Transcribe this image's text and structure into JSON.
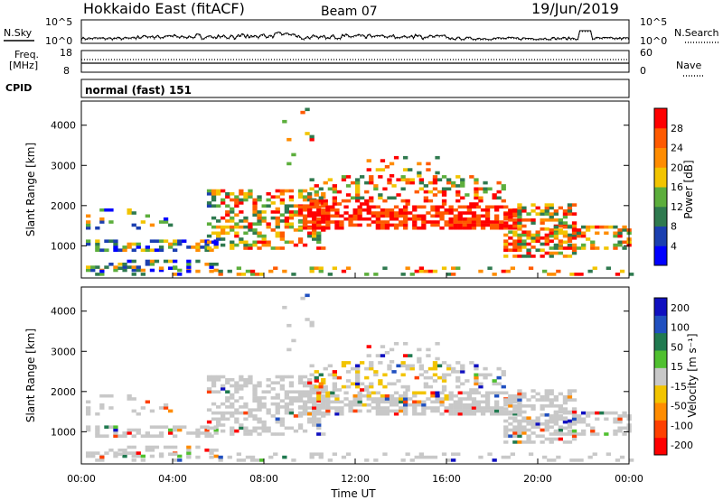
{
  "header": {
    "title": "Hokkaido East (fitACF)",
    "beam": "Beam 07",
    "date": "19/Jun/2019"
  },
  "noise_panel": {
    "left_label": "N.Sky",
    "right_label": "N.Search",
    "left_ticks": [
      "10^5",
      "10^0"
    ],
    "right_ticks": [
      "10^5",
      "10^0"
    ]
  },
  "freq_panel": {
    "left_label_1": "Freq.",
    "left_label_2": "[MHz]",
    "right_label": "Nave",
    "left_ticks": [
      "18",
      "8"
    ],
    "right_ticks": [
      "60",
      "0"
    ]
  },
  "cpid_panel": {
    "label": "CPID",
    "mode": "normal (fast) 151"
  },
  "chart_data": [
    {
      "type": "heatmap",
      "parameter": "power",
      "ylabel": "Slant Range [km]",
      "yticks": [
        1000,
        2000,
        3000,
        4000
      ],
      "ylim": [
        200,
        4600
      ],
      "colorbar_label": "Power [dB]",
      "colorbar_ticks": [
        4,
        8,
        12,
        16,
        20,
        24,
        28
      ],
      "colorbar_range": [
        0,
        32
      ],
      "colors": [
        "#0000ff",
        "#1b3fb0",
        "#2f7a4f",
        "#5cae3c",
        "#f2c400",
        "#ff8c00",
        "#ff5a00",
        "#ff0000"
      ]
    },
    {
      "type": "heatmap",
      "parameter": "velocity",
      "ylabel": "Slant Range [km]",
      "yticks": [
        1000,
        2000,
        3000,
        4000
      ],
      "ylim": [
        200,
        4600
      ],
      "colorbar_label": "Velocity [m s⁻¹]",
      "colorbar_ticks": [
        "200",
        "100",
        "50",
        "15",
        "-15",
        "-50",
        "-100",
        "-200"
      ],
      "colors": [
        "#1010c0",
        "#2050c0",
        "#207a50",
        "#50c030",
        "#c8c8c8",
        "#f2c400",
        "#ff8c00",
        "#ff4000",
        "#ff0000"
      ]
    }
  ],
  "xaxis": {
    "ticks": [
      "00:00",
      "04:00",
      "08:00",
      "12:00",
      "16:00",
      "20:00",
      "00:00"
    ],
    "label": "Time UT"
  }
}
